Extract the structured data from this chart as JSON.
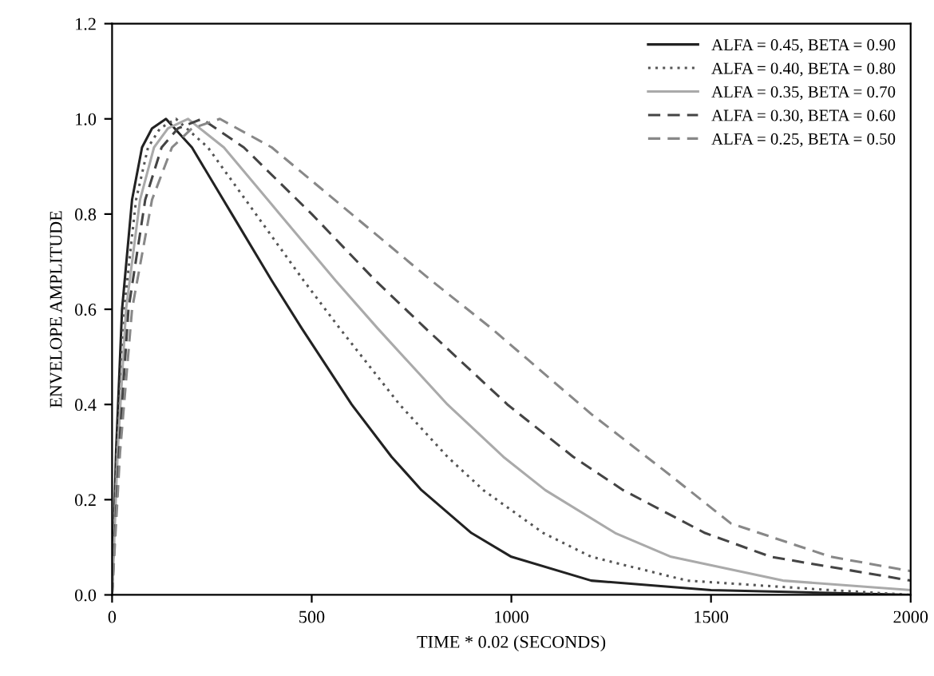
{
  "chart_data": {
    "type": "line",
    "xlabel": "TIME * 0.02 (SECONDS)",
    "ylabel": "ENVELOPE AMPLITUDE",
    "xlim": [
      0,
      2000
    ],
    "xticks": [
      0,
      500,
      1000,
      1500,
      2000
    ],
    "ylim": [
      0,
      1.2
    ],
    "yticks": [
      {
        "value": 0,
        "label": "0.0"
      },
      {
        "value": 0.2,
        "label": "0.2"
      },
      {
        "value": 0.4,
        "label": "0.4"
      },
      {
        "value": 0.6,
        "label": "0.6"
      },
      {
        "value": 0.8,
        "label": "0.8"
      },
      {
        "value": 1.0,
        "label": "1.0"
      },
      {
        "value": 1.2,
        "label": "1.2"
      }
    ],
    "grid": false,
    "legend": "top right",
    "series": [
      {
        "name": "ALFA = 0.45, BETA = 0.90",
        "color": "#222222",
        "line_style": "solid",
        "x": [
          0,
          10,
          25,
          50,
          75,
          100,
          135,
          200,
          300,
          400,
          475,
          600,
          700,
          775,
          900,
          1000,
          1200,
          1500,
          2000
        ],
        "values": [
          0,
          0.3,
          0.6,
          0.83,
          0.94,
          0.98,
          1.0,
          0.94,
          0.8,
          0.66,
          0.56,
          0.4,
          0.29,
          0.22,
          0.13,
          0.08,
          0.03,
          0.01,
          0
        ]
      },
      {
        "name": "ALFA = 0.40, BETA = 0.80",
        "color": "#555555",
        "line_style": "dotted",
        "x": [
          0,
          12,
          30,
          60,
          90,
          120,
          160,
          240,
          360,
          480,
          570,
          720,
          840,
          930,
          1080,
          1200,
          1440,
          1800,
          2000
        ],
        "values": [
          0,
          0.3,
          0.6,
          0.83,
          0.94,
          0.98,
          1.0,
          0.94,
          0.8,
          0.66,
          0.56,
          0.4,
          0.29,
          0.22,
          0.13,
          0.08,
          0.03,
          0.01,
          0
        ]
      },
      {
        "name": "ALFA = 0.35, BETA = 0.70",
        "color": "#aaaaaa",
        "line_style": "solid",
        "x": [
          0,
          14,
          35,
          70,
          105,
          140,
          190,
          280,
          420,
          560,
          665,
          840,
          980,
          1085,
          1260,
          1400,
          1680,
          2000
        ],
        "values": [
          0,
          0.3,
          0.6,
          0.83,
          0.94,
          0.98,
          1.0,
          0.94,
          0.8,
          0.66,
          0.56,
          0.4,
          0.29,
          0.22,
          0.13,
          0.08,
          0.03,
          0.01
        ]
      },
      {
        "name": "ALFA = 0.30, BETA = 0.60",
        "color": "#444444",
        "line_style": "dashed",
        "x": [
          0,
          17,
          41,
          83,
          124,
          165,
          225,
          330,
          500,
          660,
          785,
          990,
          1155,
          1280,
          1485,
          1650,
          2000
        ],
        "values": [
          0,
          0.3,
          0.6,
          0.83,
          0.94,
          0.98,
          1.0,
          0.94,
          0.8,
          0.66,
          0.56,
          0.4,
          0.29,
          0.22,
          0.13,
          0.08,
          0.03
        ]
      },
      {
        "name": "ALFA = 0.25, BETA = 0.50",
        "color": "#888888",
        "line_style": "dashed",
        "x": [
          0,
          20,
          50,
          100,
          150,
          200,
          270,
          400,
          600,
          800,
          950,
          1200,
          1400,
          1550,
          1800,
          2000
        ],
        "values": [
          0,
          0.3,
          0.6,
          0.83,
          0.94,
          0.98,
          1.0,
          0.94,
          0.8,
          0.66,
          0.56,
          0.38,
          0.25,
          0.15,
          0.08,
          0.05
        ]
      }
    ]
  }
}
